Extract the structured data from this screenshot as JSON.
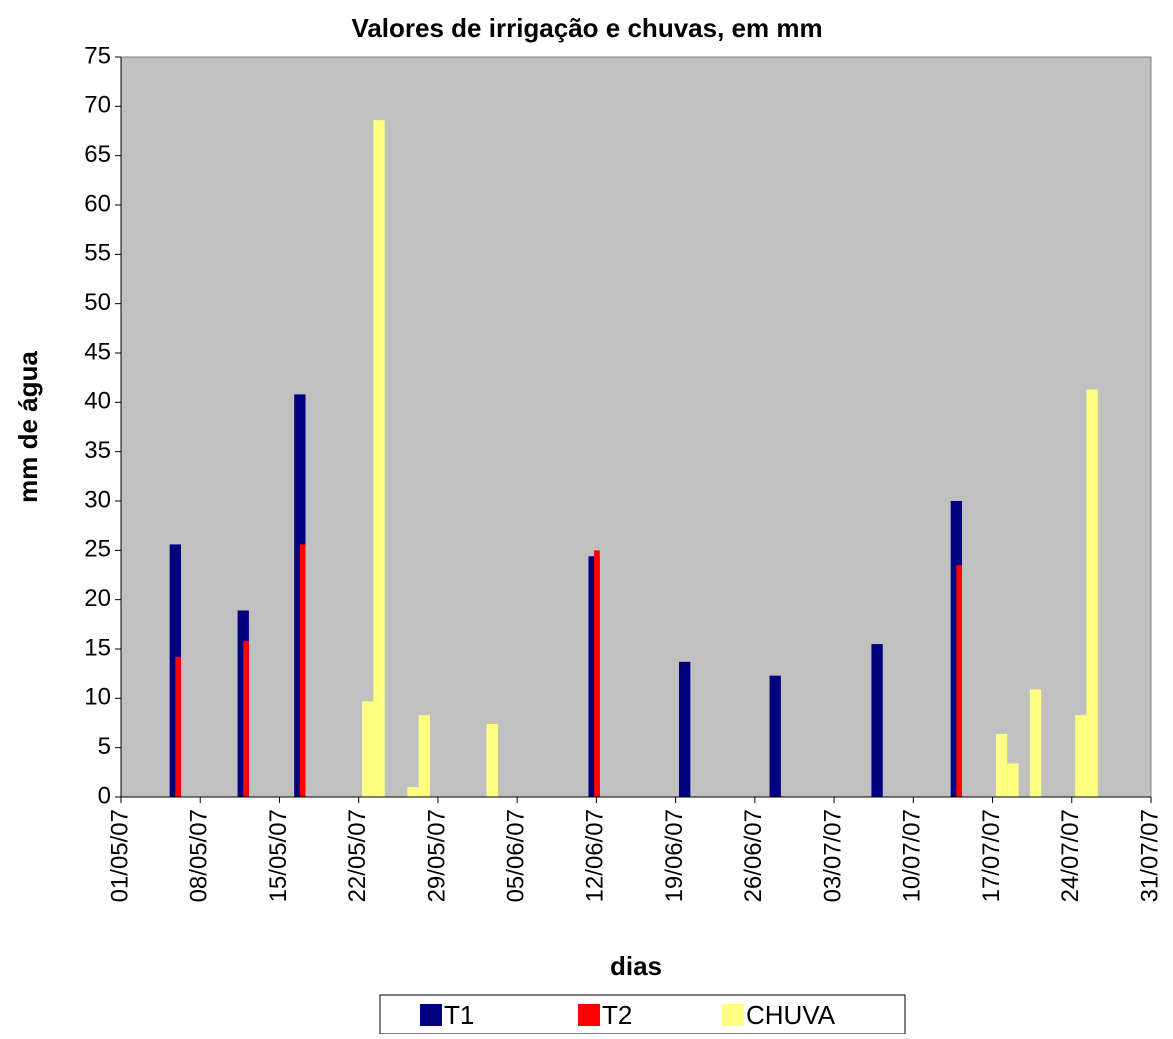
{
  "chart_data": {
    "type": "bar",
    "title": "Valores de irrigação e chuvas, em mm",
    "xlabel": "dias",
    "ylabel": "mm de água",
    "xlim": [
      "2007-05-01",
      "2007-07-31"
    ],
    "xticks": [
      {
        "value": "2007-05-01",
        "label": "01/05/07"
      },
      {
        "value": "2007-05-08",
        "label": "08/05/07"
      },
      {
        "value": "2007-05-15",
        "label": "15/05/07"
      },
      {
        "value": "2007-05-22",
        "label": "22/05/07"
      },
      {
        "value": "2007-05-29",
        "label": "29/05/07"
      },
      {
        "value": "2007-06-05",
        "label": "05/06/07"
      },
      {
        "value": "2007-06-12",
        "label": "12/06/07"
      },
      {
        "value": "2007-06-19",
        "label": "19/06/07"
      },
      {
        "value": "2007-06-26",
        "label": "26/06/07"
      },
      {
        "value": "2007-07-03",
        "label": "03/07/07"
      },
      {
        "value": "2007-07-10",
        "label": "10/07/07"
      },
      {
        "value": "2007-07-17",
        "label": "17/07/07"
      },
      {
        "value": "2007-07-24",
        "label": "24/07/07"
      },
      {
        "value": "2007-07-31",
        "label": "31/07/07"
      }
    ],
    "ylim": [
      0,
      75
    ],
    "yticks": [
      0,
      5,
      10,
      15,
      20,
      25,
      30,
      35,
      40,
      45,
      50,
      55,
      60,
      65,
      70,
      75
    ],
    "series": [
      {
        "name": "T1",
        "color": "#000080",
        "x": [
          "2007-05-05",
          "2007-05-11",
          "2007-05-16",
          "2007-06-11",
          "2007-06-19",
          "2007-06-27",
          "2007-07-06",
          "2007-07-13"
        ],
        "values": [
          25.6,
          18.9,
          40.8,
          24.4,
          13.7,
          12.3,
          15.5,
          30.0
        ]
      },
      {
        "name": "T2",
        "color": "#ff0000",
        "x": [
          "2007-05-05",
          "2007-05-11",
          "2007-05-16",
          "2007-06-11",
          "2007-07-13"
        ],
        "values": [
          14.2,
          15.8,
          25.6,
          25.0,
          23.5
        ]
      },
      {
        "name": "CHUVA",
        "color": "#ffff80",
        "x": [
          "2007-05-22",
          "2007-05-23",
          "2007-05-26",
          "2007-05-27",
          "2007-06-02",
          "2007-07-17",
          "2007-07-18",
          "2007-07-20",
          "2007-07-24",
          "2007-07-25"
        ],
        "values": [
          9.7,
          68.6,
          1.0,
          8.3,
          7.4,
          6.4,
          3.4,
          10.9,
          8.3,
          41.3
        ]
      }
    ]
  }
}
